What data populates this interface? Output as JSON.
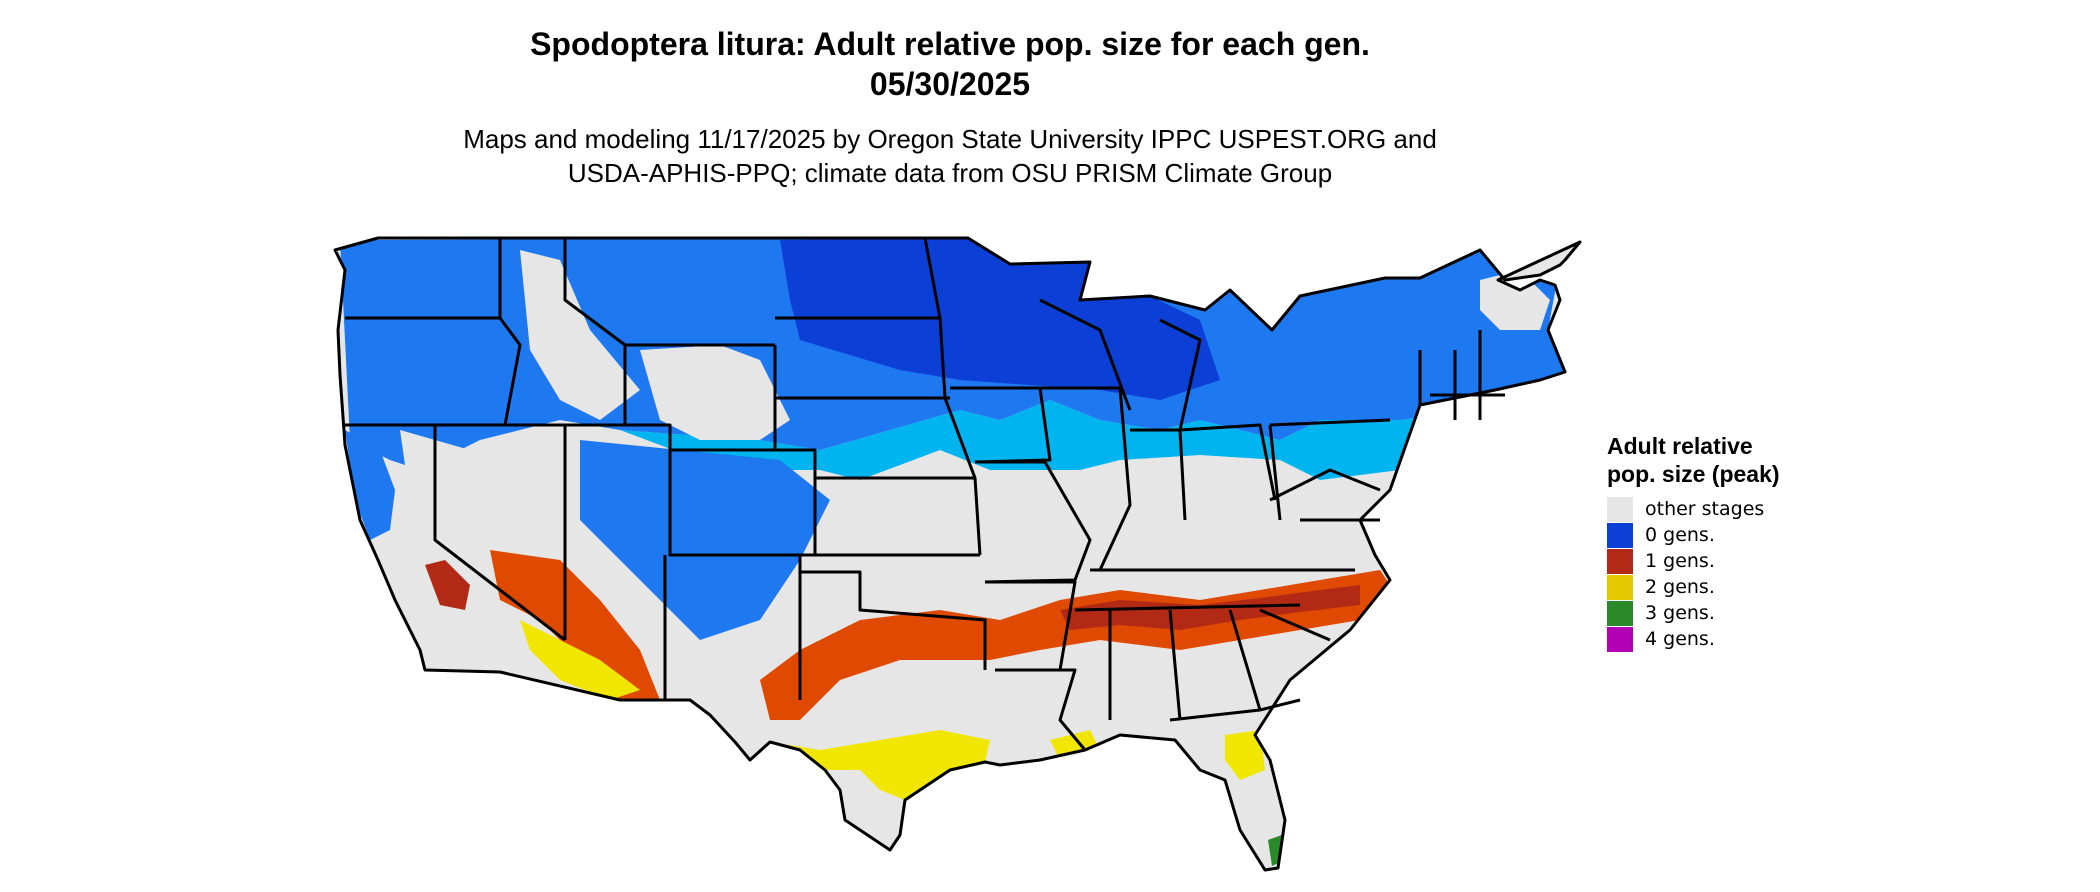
{
  "title": {
    "line1": "Spodoptera litura: Adult relative pop. size for each gen.",
    "line2": "05/30/2025"
  },
  "subtitle": {
    "line1": "Maps and modeling 11/17/2025 by Oregon State University IPPC USPEST.ORG and",
    "line2": "USDA-APHIS-PPQ; climate data from OSU PRISM Climate Group"
  },
  "legend": {
    "title": "Adult relative pop. size (peak)",
    "items": [
      {
        "label": "other stages",
        "color": "#e6e6e6"
      },
      {
        "label": "0 gens.",
        "color": "#0b3fd6"
      },
      {
        "label": "1 gens.",
        "color": "#b22a16"
      },
      {
        "label": "2 gens.",
        "color": "#e6c800"
      },
      {
        "label": "3 gens.",
        "color": "#2a8a2a"
      },
      {
        "label": "4 gens.",
        "color": "#b400b4"
      }
    ]
  },
  "colors": {
    "background": "#ffffff",
    "land": "#e6e6e6",
    "gen0_dark": "#0b3fd6",
    "gen0_mid": "#1e78f0",
    "gen0_light": "#00b4f0",
    "gen1_dark": "#b22a16",
    "gen1_orange": "#e04a00",
    "gen2_yellow": "#f0e600",
    "gen3_green": "#2a8a2a",
    "state_border": "#000000"
  }
}
